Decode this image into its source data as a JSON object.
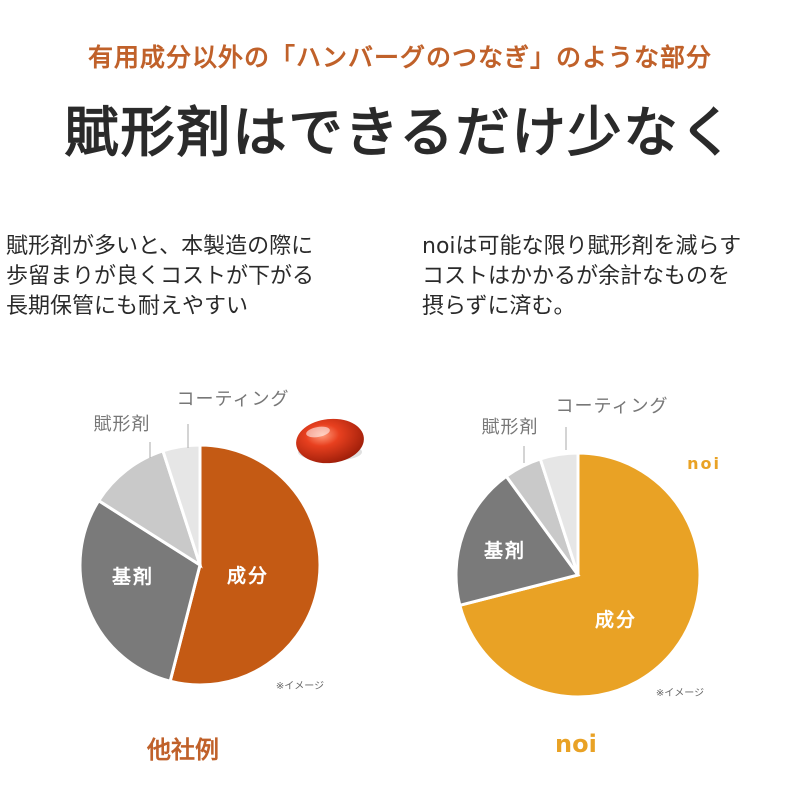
{
  "heading": {
    "subtitle": "有用成分以外の「ハンバーグのつなぎ」のような部分",
    "title": "賦形剤はできるだけ少なく"
  },
  "descriptions": {
    "left": [
      "賦形剤が多いと、本製造の際に",
      "歩留まりが良くコストが下がる",
      "長期保管にも耐えやすい"
    ],
    "right": [
      "noiは可能な限り賦形剤を減らす",
      "コストはかかるが余計なものを",
      "摂らずに済む。"
    ]
  },
  "colors": {
    "accent_brown": "#c0612a",
    "accent_orange": "#e9a225",
    "text_dark": "#2a2a2a",
    "label_gray": "#777777",
    "capsule_red": "#d93a1a"
  },
  "chart_data": [
    {
      "type": "pie",
      "name": "他社例",
      "caption": "他社例",
      "note": "※イメージ",
      "decor": "capsule-image",
      "start_angle_deg": 0,
      "slices": [
        {
          "label": "成分",
          "value": 54,
          "color": "#c45a14",
          "label_position": "inside"
        },
        {
          "label": "基剤",
          "value": 30,
          "color": "#7a7a7a",
          "label_position": "inside"
        },
        {
          "label": "賦形剤",
          "value": 11,
          "color": "#c9c9c9",
          "label_position": "outside"
        },
        {
          "label": "コーティング",
          "value": 5,
          "color": "#e6e6e6",
          "label_position": "outside"
        }
      ]
    },
    {
      "type": "pie",
      "name": "noi",
      "caption": "noi",
      "brand_label": "noi",
      "note": "※イメージ",
      "start_angle_deg": 0,
      "slices": [
        {
          "label": "成分",
          "value": 71,
          "color": "#e9a225",
          "label_position": "inside"
        },
        {
          "label": "基剤",
          "value": 19,
          "color": "#7a7a7a",
          "label_position": "inside"
        },
        {
          "label": "賦形剤",
          "value": 5,
          "color": "#c9c9c9",
          "label_position": "outside"
        },
        {
          "label": "コーティング",
          "value": 5,
          "color": "#e6e6e6",
          "label_position": "outside"
        }
      ]
    }
  ]
}
